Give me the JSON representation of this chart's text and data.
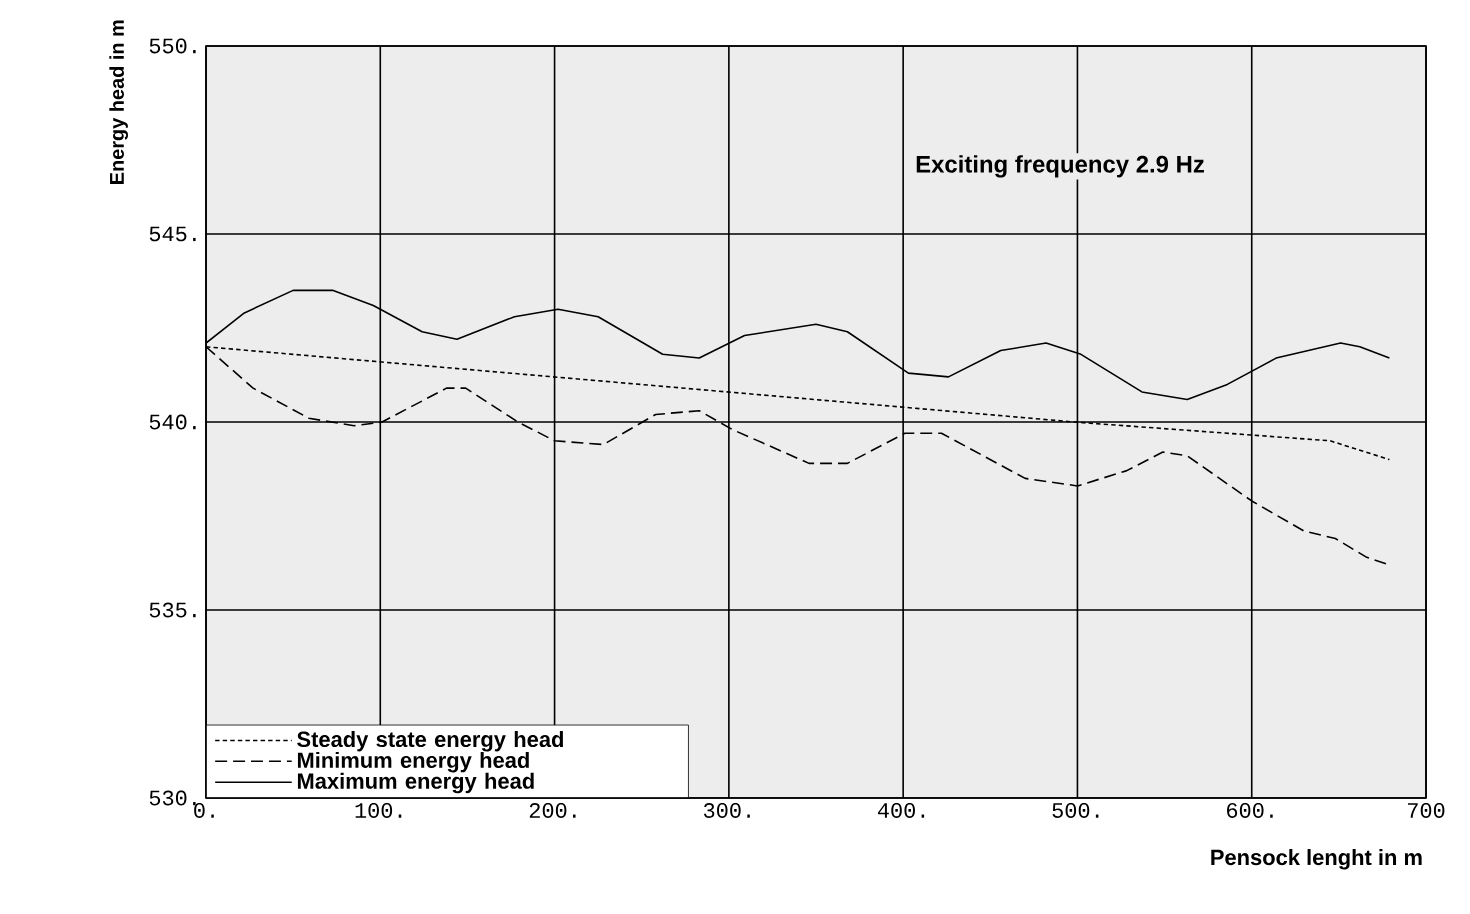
{
  "chart_data": {
    "type": "line",
    "xlabel": "Pensock lenght in m",
    "ylabel": "Energy head  in m",
    "annotations": [
      "Exciting frequency 2.9 Hz"
    ],
    "xlim": [
      0,
      700
    ],
    "ylim": [
      530,
      550
    ],
    "xticks": [
      {
        "value": 0,
        "label": "0."
      },
      {
        "value": 100,
        "label": "100."
      },
      {
        "value": 200,
        "label": "200."
      },
      {
        "value": 300,
        "label": "300."
      },
      {
        "value": 400,
        "label": "400."
      },
      {
        "value": 500,
        "label": "500."
      },
      {
        "value": 600,
        "label": "600."
      },
      {
        "value": 700,
        "label": "700"
      }
    ],
    "yticks": [
      {
        "value": 530,
        "label": "530."
      },
      {
        "value": 535,
        "label": "535."
      },
      {
        "value": 540,
        "label": "540."
      },
      {
        "value": 545,
        "label": "545."
      },
      {
        "value": 550,
        "label": "550."
      }
    ],
    "grid": true,
    "legend": "bottom left",
    "series": [
      {
        "name": "Steady state energy head",
        "color": "#000000",
        "line_style": "dotted",
        "x": [
          0,
          299,
          498,
          645,
          679
        ],
        "values": [
          542.0,
          540.8,
          540.0,
          539.5,
          539.0
        ]
      },
      {
        "name": "Minimum energy head",
        "color": "#000000",
        "line_style": "dashed",
        "x": [
          0,
          27,
          59,
          85,
          101,
          138,
          149,
          179,
          200,
          228,
          258,
          283,
          302,
          346,
          368,
          401,
          422,
          470,
          500,
          528,
          549,
          563,
          600,
          630,
          648,
          666,
          679
        ],
        "values": [
          542.0,
          540.9,
          540.1,
          539.9,
          540.0,
          540.9,
          540.9,
          540.0,
          539.5,
          539.4,
          540.2,
          540.3,
          539.8,
          538.9,
          538.9,
          539.7,
          539.7,
          538.5,
          538.3,
          538.7,
          539.2,
          539.1,
          537.9,
          537.1,
          536.9,
          536.4,
          536.2
        ]
      },
      {
        "name": "Maximum energy head",
        "color": "#000000",
        "line_style": "solid",
        "x": [
          0,
          22,
          50,
          73,
          96,
          124,
          144,
          177,
          202,
          225,
          262,
          283,
          309,
          350,
          368,
          403,
          426,
          456,
          482,
          502,
          537,
          563,
          586,
          614,
          651,
          662,
          679
        ],
        "values": [
          542.1,
          542.9,
          543.5,
          543.5,
          543.1,
          542.4,
          542.2,
          542.8,
          543.0,
          542.8,
          541.8,
          541.7,
          542.3,
          542.6,
          542.4,
          541.3,
          541.2,
          541.9,
          542.1,
          541.8,
          540.8,
          540.6,
          541.0,
          541.7,
          542.1,
          542.0,
          541.7
        ]
      }
    ]
  }
}
